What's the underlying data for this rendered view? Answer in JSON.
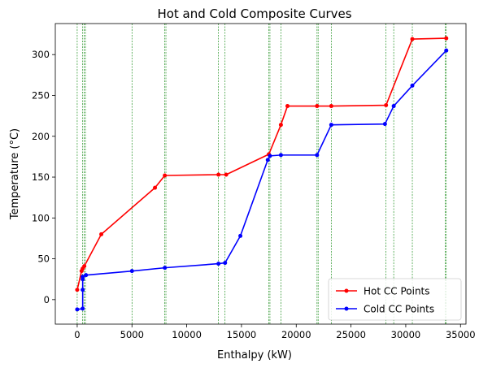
{
  "chart_data": {
    "type": "line",
    "title": "Hot and Cold Composite Curves",
    "xlabel": "Enthalpy (kW)",
    "ylabel": "Temperature (°C)",
    "xlim": [
      -2000,
      35500
    ],
    "ylim": [
      -30,
      338
    ],
    "xticks": [
      0,
      5000,
      10000,
      15000,
      20000,
      25000,
      30000,
      35000
    ],
    "yticks": [
      0,
      50,
      100,
      150,
      200,
      250,
      300
    ],
    "grid": false,
    "legend_position": "lower right",
    "vlines": [
      0,
      500,
      650,
      750,
      5000,
      8000,
      8100,
      12900,
      13500,
      17500,
      17600,
      18600,
      21900,
      22000,
      23200,
      28200,
      28900,
      30600,
      33600,
      33700
    ],
    "vline_color": "#008000",
    "series": [
      {
        "name": "Hot CC Points",
        "color": "#ff0000",
        "x": [
          0,
          400,
          500,
          650,
          2200,
          7100,
          8000,
          12900,
          13600,
          17500,
          18600,
          19200,
          21900,
          23200,
          28200,
          30600,
          33700
        ],
        "y": [
          12,
          35,
          38,
          41,
          80,
          137,
          152,
          153,
          153,
          178,
          214,
          237,
          237,
          237,
          238,
          319,
          320
        ]
      },
      {
        "name": "Cold CC Points",
        "color": "#0000ff",
        "x": [
          0,
          500,
          500,
          500,
          500,
          800,
          5000,
          8000,
          12900,
          13500,
          14900,
          17400,
          17600,
          18600,
          21900,
          23200,
          28100,
          28900,
          30600,
          33700
        ],
        "y": [
          -12,
          -11,
          12,
          25,
          28,
          30,
          35,
          39,
          44,
          45,
          78,
          171,
          176,
          177,
          177,
          214,
          215,
          237,
          262,
          305
        ]
      }
    ]
  }
}
